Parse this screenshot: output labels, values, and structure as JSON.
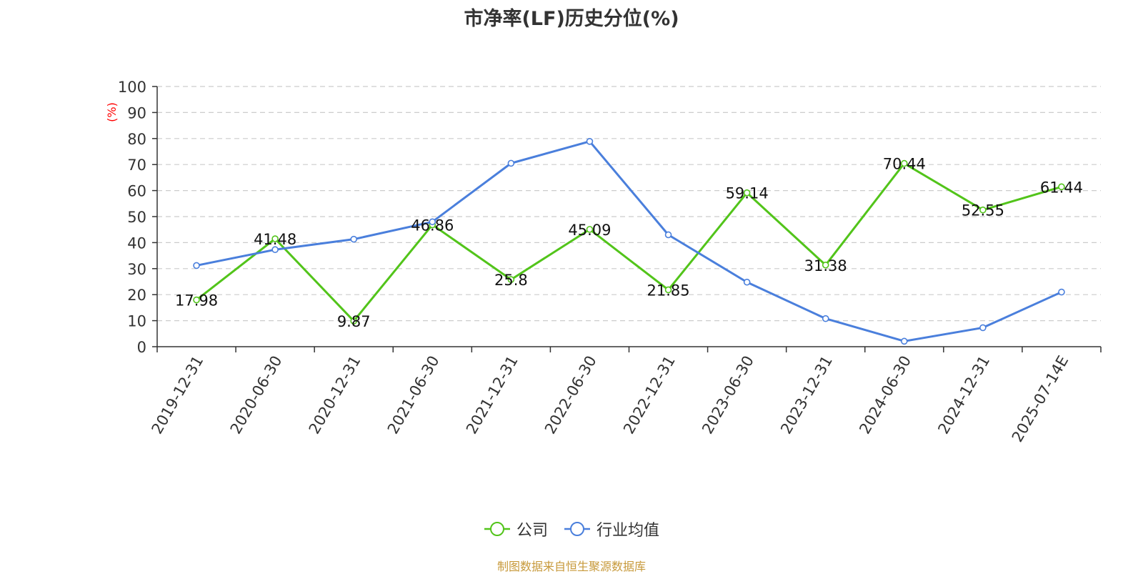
{
  "chart_data": {
    "type": "line",
    "title": "市净率(LF)历史分位(%)",
    "ylabel": "(%)",
    "ylim": [
      0,
      100
    ],
    "ytick_labels": [
      "0",
      "10",
      "20",
      "30",
      "40",
      "50",
      "60",
      "70",
      "80",
      "90",
      "100"
    ],
    "grid": true,
    "legend_position": "bottom-center",
    "categories": [
      "2019-12-31",
      "2020-06-30",
      "2020-12-31",
      "2021-06-30",
      "2021-12-31",
      "2022-06-30",
      "2022-12-31",
      "2023-06-30",
      "2023-12-31",
      "2024-06-30",
      "2024-12-31",
      "2025-07-14E"
    ],
    "series": [
      {
        "name": "公司",
        "color": "#52c41a",
        "values": [
          17.98,
          41.48,
          9.87,
          46.86,
          25.8,
          45.09,
          21.85,
          59.14,
          31.38,
          70.44,
          52.55,
          61.44
        ],
        "data_labels": [
          "17.98",
          "41.48",
          "9.87",
          "46.86",
          "25.8",
          "45.09",
          "21.85",
          "59.14",
          "31.38",
          "70.44",
          "52.55",
          "61.44"
        ]
      },
      {
        "name": "行业均值",
        "color": "#4a7fdc",
        "values": [
          31.2,
          37.3,
          41.3,
          48.0,
          70.5,
          78.9,
          43.0,
          24.8,
          10.8,
          2.1,
          7.3,
          21.0
        ]
      }
    ]
  },
  "footer": {
    "source": "制图数据来自恒生聚源数据库"
  },
  "colors": {
    "axis_label_color": "#ff0000",
    "source_color": "#c7993a",
    "grid_color": "#cccccc"
  }
}
